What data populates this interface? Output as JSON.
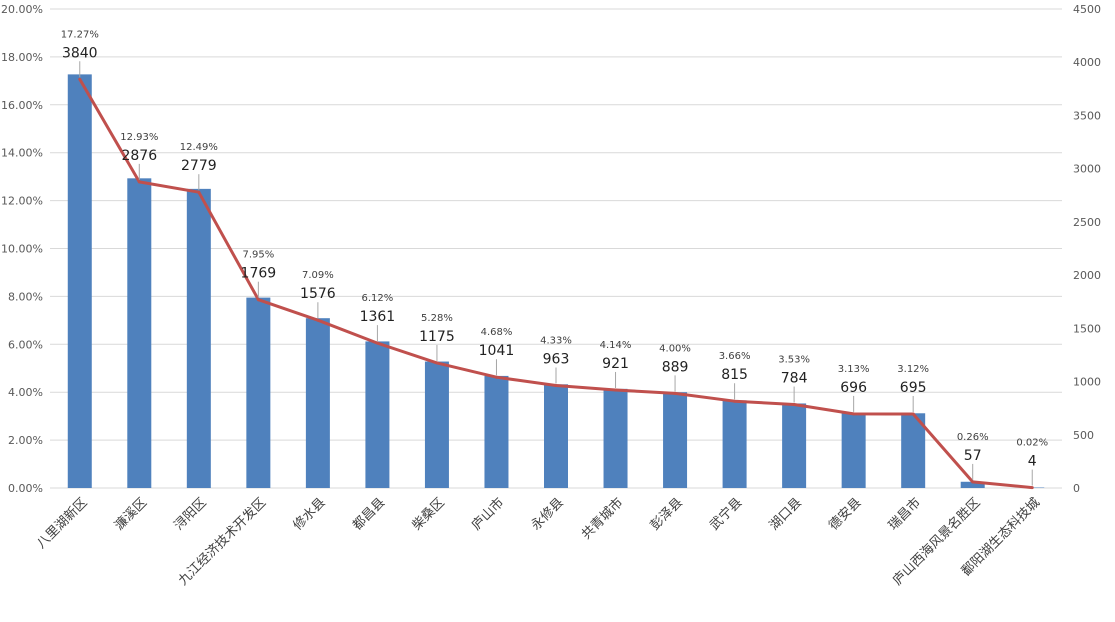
{
  "chart_data": {
    "type": "bar",
    "categories": [
      "八里湖新区",
      "濂溪区",
      "浔阳区",
      "九江经济技术开发区",
      "修水县",
      "都昌县",
      "柴桑区",
      "庐山市",
      "永修县",
      "共青城市",
      "彭泽县",
      "武宁县",
      "湖口县",
      "德安县",
      "瑞昌市",
      "庐山西海风景名胜区",
      "鄱阳湖生态科技城"
    ],
    "series": [
      {
        "type": "bar",
        "axis": "left",
        "values": [
          0.1727,
          0.1293,
          0.1249,
          0.0795,
          0.0709,
          0.0612,
          0.0528,
          0.0468,
          0.0433,
          0.0414,
          0.04,
          0.0366,
          0.0353,
          0.0313,
          0.0312,
          0.0026,
          0.0002
        ],
        "labels": [
          "17.27%",
          "12.93%",
          "12.49%",
          "7.95%",
          "7.09%",
          "6.12%",
          "5.28%",
          "4.68%",
          "4.33%",
          "4.14%",
          "4.00%",
          "3.66%",
          "3.53%",
          "3.13%",
          "3.12%",
          "0.26%",
          "0.02%"
        ],
        "color": "#4f81bd"
      },
      {
        "type": "line",
        "axis": "right",
        "values": [
          3840,
          2876,
          2779,
          1769,
          1576,
          1361,
          1175,
          1041,
          963,
          921,
          889,
          815,
          784,
          696,
          695,
          57,
          4
        ],
        "color": "#c0504d"
      }
    ],
    "left_axis": {
      "ylim": [
        0,
        0.2
      ],
      "ticks": [
        "0.00%",
        "2.00%",
        "4.00%",
        "6.00%",
        "8.00%",
        "10.00%",
        "12.00%",
        "14.00%",
        "16.00%",
        "18.00%",
        "20.00%"
      ]
    },
    "right_axis": {
      "ylim": [
        0,
        4500
      ],
      "ticks": [
        "0",
        "500",
        "1000",
        "1500",
        "2000",
        "2500",
        "3000",
        "3500",
        "4000",
        "4500"
      ]
    },
    "grid": true,
    "legend": "none"
  }
}
